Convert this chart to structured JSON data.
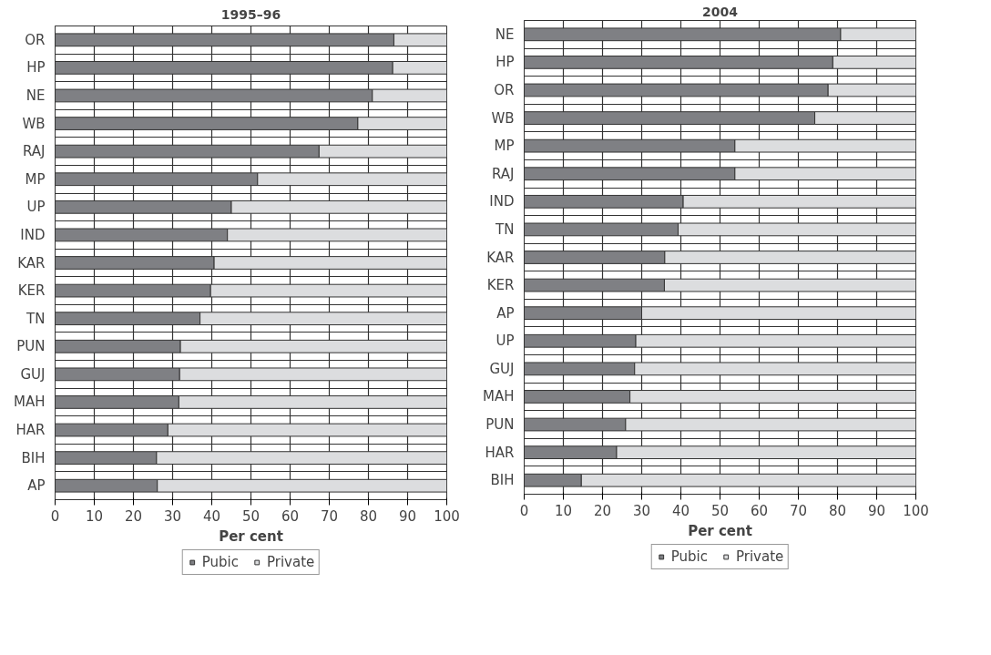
{
  "chart_data": [
    {
      "type": "bar",
      "orientation": "horizontal",
      "stacked": true,
      "title": "1995–96",
      "xlabel": "Per cent",
      "categories": [
        "OR",
        "HP",
        "NE",
        "WB",
        "RAJ",
        "MP",
        "UP",
        "IND",
        "KAR",
        "KER",
        "TN",
        "PUN",
        "GUJ",
        "MAH",
        "HAR",
        "BIH",
        "AP"
      ],
      "series": [
        {
          "name": "Pubic",
          "color": "#7f8084",
          "values": [
            86.5,
            86.2,
            81.0,
            77.3,
            67.4,
            51.7,
            45.0,
            44.0,
            40.6,
            39.7,
            37.0,
            32.0,
            31.8,
            31.6,
            28.8,
            25.9,
            26.1
          ]
        },
        {
          "name": "Private",
          "color": "#dcdddf",
          "values": [
            13.5,
            13.8,
            19.0,
            22.7,
            32.6,
            48.3,
            55.0,
            56.0,
            59.4,
            60.3,
            63.0,
            68.0,
            68.2,
            68.4,
            71.2,
            74.1,
            73.9
          ]
        }
      ],
      "xlim": [
        0,
        100
      ],
      "xticks": [
        0,
        10,
        20,
        30,
        40,
        50,
        60,
        70,
        80,
        90,
        100
      ],
      "grid": true,
      "legend": "bottom"
    },
    {
      "type": "bar",
      "orientation": "horizontal",
      "stacked": true,
      "title": "2004",
      "xlabel": "Per cent",
      "categories": [
        "NE",
        "HP",
        "OR",
        "WB",
        "MP",
        "RAJ",
        "IND",
        "TN",
        "KAR",
        "KER",
        "AP",
        "UP",
        "GUJ",
        "MAH",
        "PUN",
        "HAR",
        "BIH"
      ],
      "series": [
        {
          "name": "Pubic",
          "color": "#7f8084",
          "values": [
            80.8,
            78.8,
            77.6,
            74.2,
            53.8,
            53.8,
            40.6,
            39.3,
            35.9,
            35.8,
            30.0,
            28.5,
            28.2,
            27.0,
            25.9,
            23.6,
            14.6
          ]
        },
        {
          "name": "Private",
          "color": "#dcdddf",
          "values": [
            19.2,
            21.2,
            22.4,
            25.8,
            46.2,
            46.2,
            59.4,
            60.7,
            64.1,
            64.2,
            70.0,
            71.5,
            71.8,
            73.0,
            74.1,
            76.4,
            85.4
          ]
        }
      ],
      "xlim": [
        0,
        100
      ],
      "xticks": [
        0,
        10,
        20,
        30,
        40,
        50,
        60,
        70,
        80,
        90,
        100
      ],
      "grid": true,
      "legend": "bottom"
    }
  ]
}
